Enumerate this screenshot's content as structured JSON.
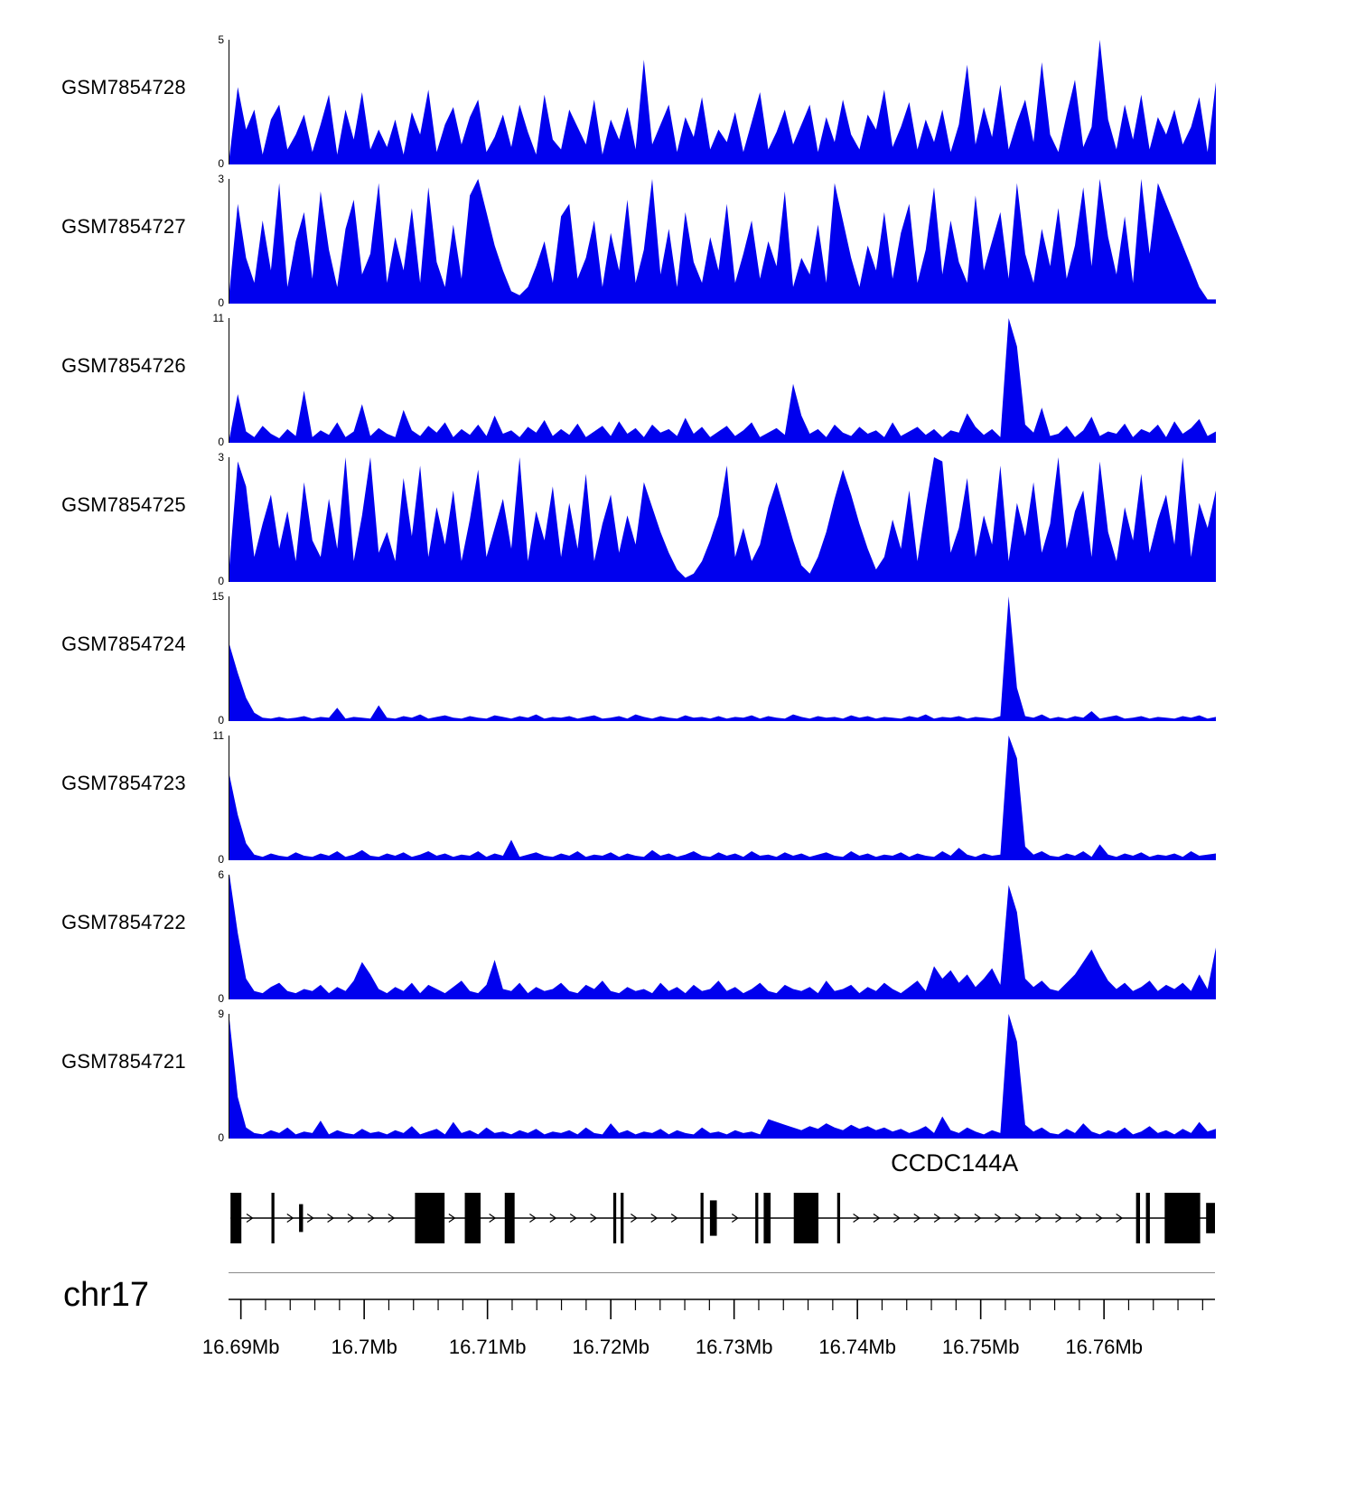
{
  "colors": {
    "signal_fill": "#0000EE",
    "ink": "#000000",
    "separator": "#8a8a8a"
  },
  "chart_data": {
    "type": "area",
    "subtype": "genome-coverage-tracks",
    "region": {
      "chrom": "chr17",
      "x_min_mb": 16.689,
      "x_max_mb": 16.769
    },
    "x_ticks": [
      {
        "value_mb": 16.69,
        "label": "16.69Mb"
      },
      {
        "value_mb": 16.7,
        "label": "16.7Mb"
      },
      {
        "value_mb": 16.71,
        "label": "16.71Mb"
      },
      {
        "value_mb": 16.72,
        "label": "16.72Mb"
      },
      {
        "value_mb": 16.73,
        "label": "16.73Mb"
      },
      {
        "value_mb": 16.74,
        "label": "16.74Mb"
      },
      {
        "value_mb": 16.75,
        "label": "16.75Mb"
      },
      {
        "value_mb": 16.76,
        "label": "16.76Mb"
      }
    ],
    "minor_tick_step_mb": 0.002,
    "x_sampling": "values are uniformly spaced across region from x_min_mb to x_max_mb",
    "tracks": [
      {
        "label": "GSM7854728",
        "ymin": 0,
        "ymax": 5,
        "values": [
          0.3,
          3.1,
          1.4,
          2.2,
          0.4,
          1.8,
          2.4,
          0.6,
          1.2,
          2.0,
          0.5,
          1.6,
          2.8,
          0.4,
          2.2,
          1.0,
          2.9,
          0.6,
          1.4,
          0.7,
          1.8,
          0.4,
          2.1,
          1.2,
          3.0,
          0.5,
          1.6,
          2.3,
          0.8,
          1.9,
          2.6,
          0.5,
          1.1,
          2.0,
          0.7,
          2.4,
          1.3,
          0.4,
          2.8,
          1.0,
          0.6,
          2.2,
          1.5,
          0.8,
          2.6,
          0.4,
          1.8,
          1.0,
          2.3,
          0.6,
          4.2,
          0.8,
          1.6,
          2.4,
          0.5,
          1.9,
          1.1,
          2.7,
          0.6,
          1.4,
          0.9,
          2.1,
          0.5,
          1.7,
          2.9,
          0.6,
          1.3,
          2.2,
          0.8,
          1.6,
          2.4,
          0.5,
          1.9,
          0.9,
          2.6,
          1.2,
          0.6,
          2.0,
          1.4,
          3.0,
          0.7,
          1.5,
          2.5,
          0.6,
          1.8,
          0.9,
          2.2,
          0.5,
          1.6,
          4.0,
          0.8,
          2.3,
          1.1,
          3.2,
          0.6,
          1.7,
          2.6,
          0.9,
          4.1,
          1.2,
          0.5,
          2.0,
          3.4,
          0.7,
          1.5,
          5.0,
          1.8,
          0.6,
          2.4,
          1.0,
          2.8,
          0.6,
          1.9,
          1.2,
          2.2,
          0.8,
          1.5,
          2.7,
          0.5,
          3.3
        ]
      },
      {
        "label": "GSM7854727",
        "ymin": 0,
        "ymax": 3,
        "values": [
          0.3,
          2.4,
          1.1,
          0.5,
          2.0,
          0.8,
          2.9,
          0.4,
          1.5,
          2.2,
          0.6,
          2.7,
          1.3,
          0.4,
          1.8,
          2.5,
          0.7,
          1.2,
          2.9,
          0.5,
          1.6,
          0.8,
          2.3,
          0.5,
          2.8,
          1.0,
          0.4,
          1.9,
          0.6,
          2.6,
          3.0,
          2.2,
          1.4,
          0.8,
          0.3,
          0.2,
          0.4,
          0.9,
          1.5,
          0.5,
          2.1,
          2.4,
          0.6,
          1.1,
          2.0,
          0.4,
          1.7,
          0.8,
          2.5,
          0.5,
          1.3,
          3.0,
          0.7,
          1.8,
          0.4,
          2.2,
          1.0,
          0.5,
          1.6,
          0.8,
          2.4,
          0.5,
          1.2,
          2.0,
          0.6,
          1.5,
          0.9,
          2.7,
          0.4,
          1.1,
          0.7,
          1.9,
          0.5,
          2.9,
          2.0,
          1.1,
          0.4,
          1.4,
          0.8,
          2.2,
          0.6,
          1.7,
          2.4,
          0.5,
          1.3,
          2.8,
          0.7,
          2.0,
          1.0,
          0.5,
          2.6,
          0.8,
          1.5,
          2.2,
          0.6,
          2.9,
          1.2,
          0.5,
          1.8,
          0.9,
          2.3,
          0.6,
          1.4,
          2.8,
          0.9,
          3.0,
          1.6,
          0.7,
          2.1,
          0.5,
          3.0,
          1.2,
          2.9,
          2.4,
          1.9,
          1.4,
          0.9,
          0.4,
          0.1,
          0.1
        ]
      },
      {
        "label": "GSM7854726",
        "ymin": 0,
        "ymax": 11,
        "values": [
          0.4,
          4.3,
          1.0,
          0.5,
          1.5,
          0.8,
          0.4,
          1.2,
          0.6,
          4.6,
          0.5,
          1.1,
          0.7,
          1.8,
          0.5,
          1.0,
          3.4,
          0.6,
          1.3,
          0.8,
          0.5,
          2.9,
          1.1,
          0.6,
          1.5,
          0.9,
          1.8,
          0.5,
          1.2,
          0.7,
          1.6,
          0.6,
          2.4,
          0.8,
          1.1,
          0.5,
          1.4,
          0.9,
          2.0,
          0.6,
          1.2,
          0.7,
          1.7,
          0.5,
          1.0,
          1.5,
          0.6,
          1.9,
          0.8,
          1.3,
          0.5,
          1.6,
          0.9,
          1.2,
          0.6,
          2.2,
          0.8,
          1.4,
          0.5,
          1.0,
          1.5,
          0.6,
          1.1,
          1.8,
          0.5,
          0.9,
          1.3,
          0.7,
          5.2,
          2.4,
          0.8,
          1.2,
          0.5,
          1.6,
          0.9,
          0.6,
          1.4,
          0.8,
          1.1,
          0.5,
          1.8,
          0.6,
          1.0,
          1.4,
          0.7,
          1.2,
          0.5,
          1.1,
          0.9,
          2.6,
          1.4,
          0.7,
          1.2,
          0.5,
          11.0,
          8.5,
          1.6,
          0.9,
          3.1,
          0.6,
          0.8,
          1.5,
          0.5,
          1.1,
          2.3,
          0.6,
          1.0,
          0.8,
          1.7,
          0.5,
          1.2,
          0.9,
          1.6,
          0.5,
          1.9,
          0.8,
          1.3,
          2.1,
          0.6,
          1.0
        ]
      },
      {
        "label": "GSM7854725",
        "ymin": 0,
        "ymax": 3,
        "values": [
          0.4,
          2.9,
          2.3,
          0.6,
          1.4,
          2.1,
          0.8,
          1.7,
          0.5,
          2.4,
          1.0,
          0.6,
          2.0,
          0.8,
          3.0,
          0.5,
          1.6,
          3.0,
          0.7,
          1.2,
          0.5,
          2.5,
          1.1,
          2.8,
          0.6,
          1.8,
          0.9,
          2.2,
          0.5,
          1.5,
          2.7,
          0.6,
          1.3,
          2.0,
          0.8,
          3.0,
          0.5,
          1.7,
          1.0,
          2.3,
          0.6,
          1.9,
          0.8,
          2.6,
          0.5,
          1.4,
          2.1,
          0.7,
          1.6,
          0.9,
          2.4,
          1.8,
          1.2,
          0.7,
          0.3,
          0.1,
          0.2,
          0.5,
          1.0,
          1.6,
          2.8,
          0.6,
          1.3,
          0.5,
          0.9,
          1.8,
          2.4,
          1.7,
          1.0,
          0.4,
          0.2,
          0.6,
          1.2,
          2.0,
          2.7,
          2.1,
          1.4,
          0.8,
          0.3,
          0.6,
          1.5,
          0.8,
          2.2,
          0.5,
          1.8,
          3.0,
          2.9,
          0.7,
          1.3,
          2.5,
          0.6,
          1.6,
          0.9,
          2.8,
          0.5,
          1.9,
          1.1,
          2.4,
          0.7,
          1.4,
          3.0,
          0.8,
          1.7,
          2.2,
          0.6,
          2.9,
          1.2,
          0.5,
          1.8,
          1.0,
          2.6,
          0.7,
          1.5,
          2.1,
          0.9,
          3.0,
          0.6,
          1.9,
          1.3,
          2.2
        ]
      },
      {
        "label": "GSM7854724",
        "ymin": 0,
        "ymax": 15,
        "values": [
          9.2,
          5.8,
          2.8,
          1.0,
          0.4,
          0.3,
          0.5,
          0.3,
          0.4,
          0.6,
          0.3,
          0.5,
          0.4,
          1.6,
          0.3,
          0.5,
          0.4,
          0.3,
          1.9,
          0.4,
          0.3,
          0.6,
          0.4,
          0.8,
          0.3,
          0.5,
          0.7,
          0.4,
          0.3,
          0.6,
          0.4,
          0.3,
          0.7,
          0.5,
          0.3,
          0.6,
          0.4,
          0.8,
          0.3,
          0.5,
          0.4,
          0.6,
          0.3,
          0.5,
          0.7,
          0.3,
          0.4,
          0.6,
          0.3,
          0.8,
          0.5,
          0.3,
          0.6,
          0.4,
          0.3,
          0.7,
          0.4,
          0.5,
          0.3,
          0.6,
          0.3,
          0.5,
          0.4,
          0.7,
          0.3,
          0.6,
          0.4,
          0.3,
          0.8,
          0.5,
          0.3,
          0.6,
          0.4,
          0.5,
          0.3,
          0.7,
          0.4,
          0.6,
          0.3,
          0.5,
          0.4,
          0.3,
          0.6,
          0.4,
          0.8,
          0.3,
          0.5,
          0.4,
          0.6,
          0.3,
          0.5,
          0.4,
          0.3,
          0.6,
          15.0,
          4.0,
          0.6,
          0.4,
          0.8,
          0.3,
          0.5,
          0.3,
          0.6,
          0.4,
          1.2,
          0.3,
          0.5,
          0.7,
          0.3,
          0.4,
          0.6,
          0.3,
          0.5,
          0.4,
          0.3,
          0.6,
          0.4,
          0.7,
          0.3,
          0.5
        ]
      },
      {
        "label": "GSM7854723",
        "ymin": 0,
        "ymax": 11,
        "values": [
          7.5,
          4.0,
          1.5,
          0.5,
          0.3,
          0.6,
          0.4,
          0.3,
          0.7,
          0.4,
          0.3,
          0.6,
          0.4,
          0.8,
          0.3,
          0.5,
          0.9,
          0.4,
          0.3,
          0.6,
          0.4,
          0.7,
          0.3,
          0.5,
          0.8,
          0.4,
          0.6,
          0.3,
          0.5,
          0.4,
          0.8,
          0.3,
          0.6,
          0.4,
          1.8,
          0.3,
          0.5,
          0.7,
          0.4,
          0.3,
          0.6,
          0.4,
          0.8,
          0.3,
          0.5,
          0.4,
          0.7,
          0.3,
          0.6,
          0.4,
          0.3,
          0.9,
          0.4,
          0.6,
          0.3,
          0.5,
          0.8,
          0.4,
          0.3,
          0.7,
          0.4,
          0.6,
          0.3,
          0.8,
          0.4,
          0.5,
          0.3,
          0.7,
          0.4,
          0.6,
          0.3,
          0.5,
          0.7,
          0.4,
          0.3,
          0.8,
          0.4,
          0.6,
          0.3,
          0.5,
          0.4,
          0.7,
          0.3,
          0.6,
          0.4,
          0.3,
          0.8,
          0.4,
          1.1,
          0.5,
          0.3,
          0.6,
          0.4,
          0.5,
          11.0,
          9.0,
          1.2,
          0.5,
          0.8,
          0.4,
          0.3,
          0.6,
          0.4,
          0.8,
          0.3,
          1.4,
          0.5,
          0.3,
          0.6,
          0.4,
          0.7,
          0.3,
          0.5,
          0.4,
          0.6,
          0.3,
          0.8,
          0.4,
          0.5,
          0.6
        ]
      },
      {
        "label": "GSM7854722",
        "ymin": 0,
        "ymax": 6,
        "values": [
          6.0,
          3.2,
          1.0,
          0.4,
          0.3,
          0.6,
          0.8,
          0.4,
          0.3,
          0.5,
          0.4,
          0.7,
          0.3,
          0.6,
          0.4,
          0.9,
          1.8,
          1.2,
          0.5,
          0.3,
          0.6,
          0.4,
          0.8,
          0.3,
          0.7,
          0.5,
          0.3,
          0.6,
          0.9,
          0.4,
          0.3,
          0.7,
          1.9,
          0.5,
          0.4,
          0.8,
          0.3,
          0.6,
          0.4,
          0.5,
          0.8,
          0.4,
          0.3,
          0.7,
          0.5,
          0.9,
          0.4,
          0.3,
          0.6,
          0.4,
          0.5,
          0.3,
          0.8,
          0.4,
          0.6,
          0.3,
          0.7,
          0.4,
          0.5,
          0.9,
          0.4,
          0.6,
          0.3,
          0.5,
          0.8,
          0.4,
          0.3,
          0.7,
          0.5,
          0.4,
          0.6,
          0.3,
          0.9,
          0.4,
          0.5,
          0.7,
          0.3,
          0.6,
          0.4,
          0.8,
          0.5,
          0.3,
          0.6,
          0.9,
          0.4,
          1.6,
          1.0,
          1.4,
          0.8,
          1.2,
          0.6,
          1.0,
          1.5,
          0.7,
          5.5,
          4.2,
          1.0,
          0.6,
          0.9,
          0.5,
          0.4,
          0.8,
          1.2,
          1.8,
          2.4,
          1.6,
          0.9,
          0.5,
          0.8,
          0.4,
          0.6,
          0.9,
          0.4,
          0.7,
          0.5,
          0.8,
          0.4,
          1.2,
          0.5,
          2.5
        ]
      },
      {
        "label": "GSM7854721",
        "ymin": 0,
        "ymax": 9,
        "values": [
          8.6,
          3.0,
          0.8,
          0.4,
          0.3,
          0.6,
          0.4,
          0.8,
          0.3,
          0.5,
          0.4,
          1.3,
          0.3,
          0.6,
          0.4,
          0.3,
          0.7,
          0.4,
          0.5,
          0.3,
          0.6,
          0.4,
          0.9,
          0.3,
          0.5,
          0.7,
          0.3,
          1.2,
          0.4,
          0.6,
          0.3,
          0.8,
          0.4,
          0.5,
          0.3,
          0.6,
          0.4,
          0.7,
          0.3,
          0.5,
          0.4,
          0.6,
          0.3,
          0.8,
          0.4,
          0.3,
          1.1,
          0.4,
          0.6,
          0.3,
          0.5,
          0.4,
          0.7,
          0.3,
          0.6,
          0.4,
          0.3,
          0.8,
          0.4,
          0.5,
          0.3,
          0.6,
          0.4,
          0.5,
          0.3,
          1.4,
          1.2,
          1.0,
          0.8,
          0.6,
          0.9,
          0.7,
          1.1,
          0.8,
          0.6,
          1.0,
          0.7,
          0.9,
          0.6,
          0.8,
          0.5,
          0.7,
          0.4,
          0.6,
          0.9,
          0.4,
          1.6,
          0.6,
          0.4,
          0.8,
          0.5,
          0.3,
          0.6,
          0.4,
          9.0,
          7.0,
          1.0,
          0.5,
          0.8,
          0.4,
          0.3,
          0.7,
          0.4,
          1.1,
          0.5,
          0.3,
          0.6,
          0.4,
          0.8,
          0.3,
          0.5,
          0.9,
          0.4,
          0.6,
          0.3,
          0.7,
          0.4,
          1.2,
          0.5,
          0.7
        ]
      }
    ],
    "gene": {
      "name": "CCDC144A",
      "chrom_label": "chr17",
      "strand": "+",
      "title_x": 0.736,
      "exons": [
        {
          "x": 0.002,
          "w": 0.011,
          "h": 1.0
        },
        {
          "x": 0.0435,
          "w": 0.003,
          "h": 1.0
        },
        {
          "x": 0.0715,
          "w": 0.004,
          "h": 0.55
        },
        {
          "x": 0.189,
          "w": 0.03,
          "h": 1.0
        },
        {
          "x": 0.2395,
          "w": 0.016,
          "h": 1.0
        },
        {
          "x": 0.28,
          "w": 0.01,
          "h": 1.0
        },
        {
          "x": 0.39,
          "w": 0.003,
          "h": 1.0
        },
        {
          "x": 0.3975,
          "w": 0.003,
          "h": 1.0
        },
        {
          "x": 0.4785,
          "w": 0.003,
          "h": 1.0
        },
        {
          "x": 0.488,
          "w": 0.007,
          "h": 0.7
        },
        {
          "x": 0.534,
          "w": 0.003,
          "h": 1.0
        },
        {
          "x": 0.5425,
          "w": 0.007,
          "h": 1.0
        },
        {
          "x": 0.573,
          "w": 0.025,
          "h": 1.0
        },
        {
          "x": 0.617,
          "w": 0.003,
          "h": 1.0
        },
        {
          "x": 0.92,
          "w": 0.004,
          "h": 1.0
        },
        {
          "x": 0.93,
          "w": 0.004,
          "h": 1.0
        },
        {
          "x": 0.949,
          "w": 0.036,
          "h": 1.0
        },
        {
          "x": 0.991,
          "w": 0.009,
          "h": 0.6
        }
      ]
    }
  }
}
